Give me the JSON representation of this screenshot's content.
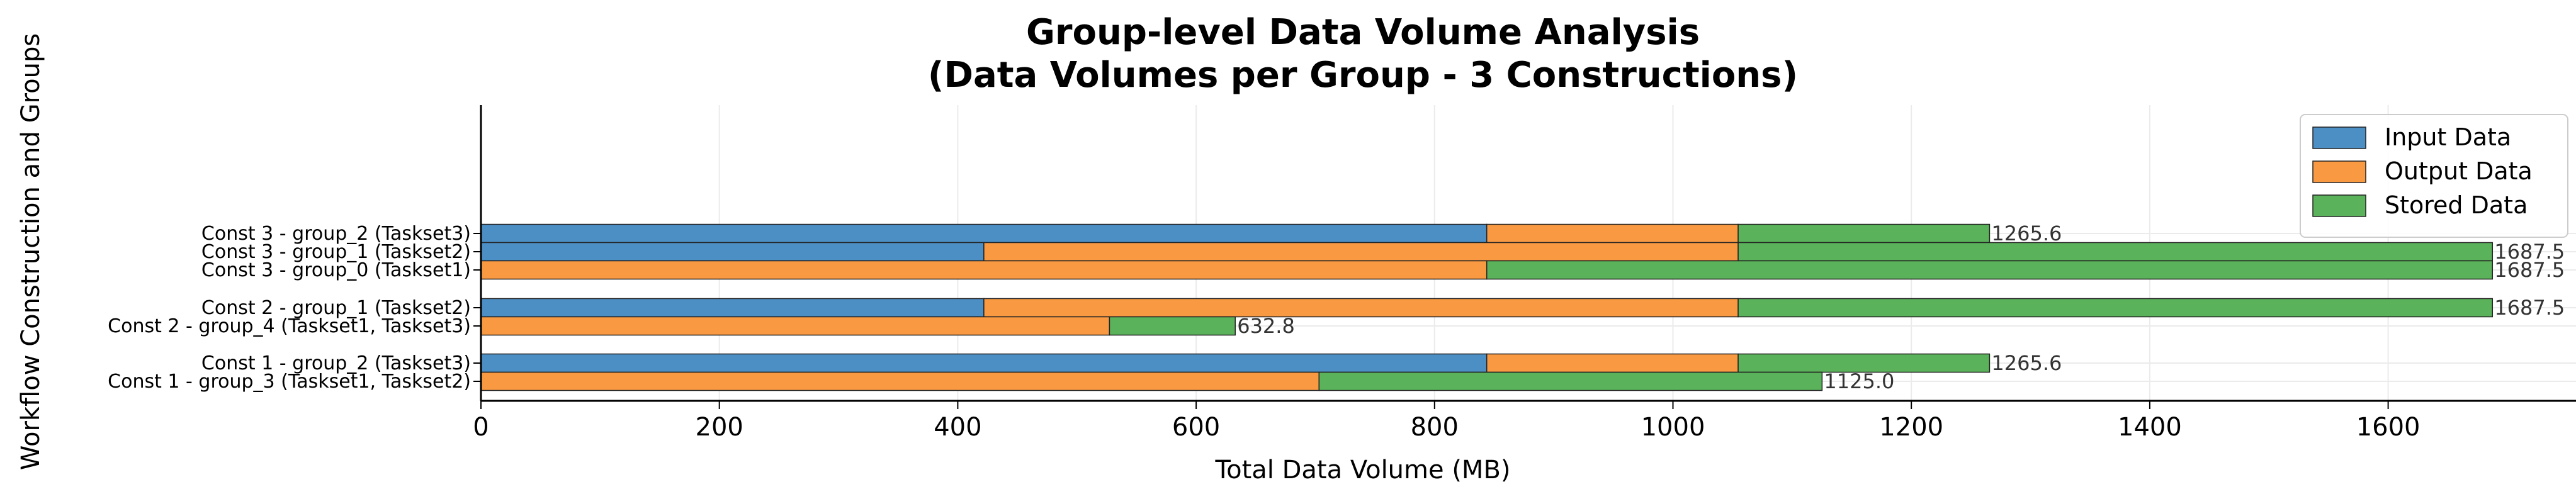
{
  "chart_data": {
    "type": "bar",
    "orientation": "horizontal",
    "stacked": true,
    "title_line1": "Group-level Data Volume Analysis",
    "title_line2": "(Data Volumes per Group - 3 Constructions)",
    "xlabel": "Total Data Volume (MB)",
    "ylabel": "Workflow Construction and Groups",
    "xlim": [
      0,
      1760
    ],
    "xticks": [
      "0",
      "200",
      "400",
      "600",
      "800",
      "1000",
      "1200",
      "1400",
      "1600"
    ],
    "grid": true,
    "legend_position": "upper right",
    "categories": [
      "Const 3 - group_2 (Taskset3)",
      "Const 3 - group_1 (Taskset2)",
      "Const 3 - group_0 (Taskset1)",
      "Const 2 - group_1 (Taskset2)",
      "Const 2 - group_4 (Taskset1, Taskset3)",
      "Const 1 - group_2 (Taskset3)",
      "Const 1 - group_3 (Taskset1, Taskset2)"
    ],
    "series": [
      {
        "name": "Input Data",
        "color": "#4c8fc4",
        "values": [
          843.8,
          421.9,
          0,
          421.9,
          0,
          843.8,
          0
        ]
      },
      {
        "name": "Output Data",
        "color": "#f99a43",
        "values": [
          210.9,
          632.8,
          843.8,
          632.8,
          527.3,
          210.9,
          703.1
        ]
      },
      {
        "name": "Stored Data",
        "color": "#5ab35a",
        "values": [
          210.9,
          632.8,
          843.7,
          632.8,
          105.5,
          210.9,
          422.0
        ]
      }
    ],
    "totals": [
      "1265.6",
      "1687.5",
      "1687.5",
      "1687.5",
      "632.8",
      "1265.6",
      "1125.0"
    ]
  }
}
